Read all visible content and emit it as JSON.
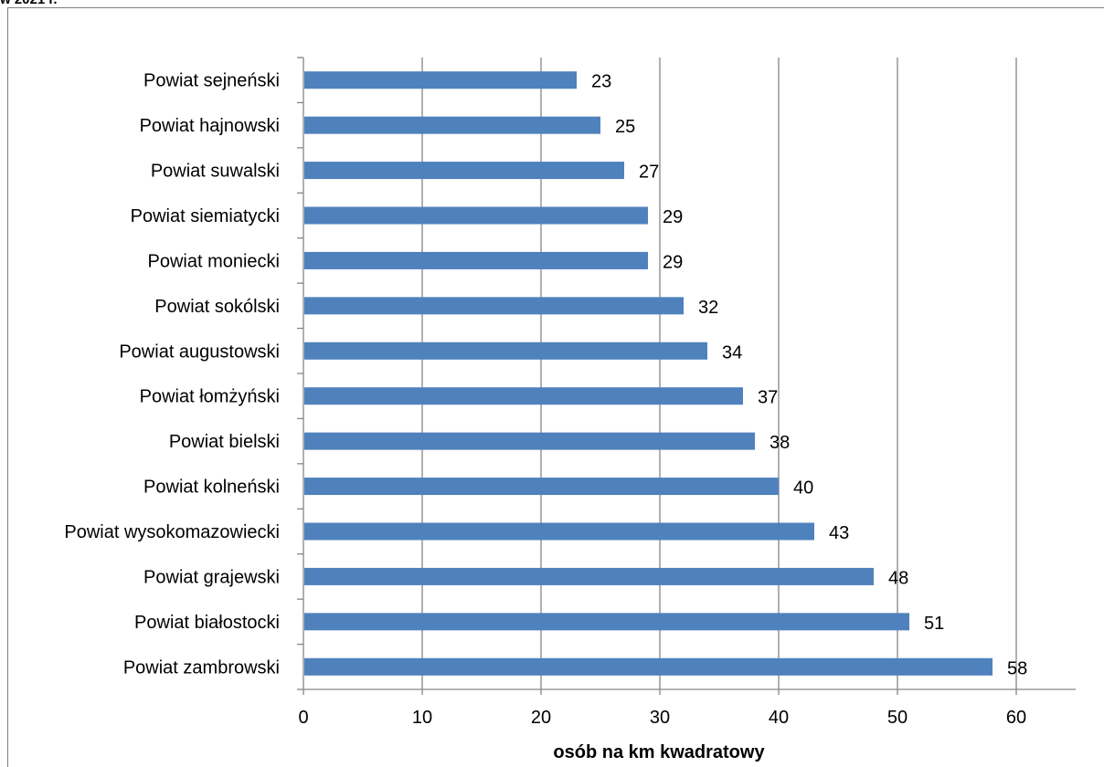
{
  "caption": "w 2021 r.",
  "chart_data": {
    "type": "bar",
    "orientation": "horizontal",
    "categories": [
      "Powiat sejneński",
      "Powiat hajnowski",
      "Powiat suwalski",
      "Powiat siemiatycki",
      "Powiat moniecki",
      "Powiat sokólski",
      "Powiat augustowski",
      "Powiat łomżyński",
      "Powiat bielski",
      "Powiat kolneński",
      "Powiat wysokomazowiecki",
      "Powiat grajewski",
      "Powiat białostocki",
      "Powiat zambrowski"
    ],
    "values": [
      23,
      25,
      27,
      29,
      29,
      32,
      34,
      37,
      38,
      40,
      43,
      48,
      51,
      58
    ],
    "data_labels": [
      "23",
      "25",
      "27",
      "29",
      "29",
      "32",
      "34",
      "37",
      "38",
      "40",
      "43",
      "48",
      "51",
      "58"
    ],
    "xlabel": "osób na km kwadratowy",
    "ylabel": "",
    "xlim": [
      0,
      65
    ],
    "xticks": [
      0,
      10,
      20,
      30,
      40,
      50,
      60
    ],
    "xtick_labels": [
      "0",
      "10",
      "20",
      "30",
      "40",
      "50",
      "60"
    ],
    "grid": true,
    "legend": "none",
    "bar_color": "#4f81bd",
    "grid_color": "#868686"
  }
}
